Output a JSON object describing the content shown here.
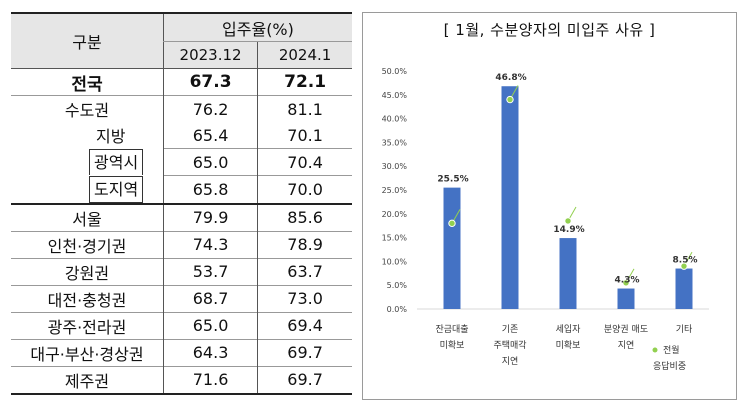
{
  "table": {
    "header": {
      "category": "구분",
      "group": "입주율(%)",
      "col1": "2023.12",
      "col2": "2024.1"
    },
    "rows": [
      {
        "label": "전국",
        "v1": "67.3",
        "v2": "72.1"
      },
      {
        "label": "수도권",
        "v1": "76.2",
        "v2": "81.1"
      },
      {
        "label": "지방",
        "v1": "65.4",
        "v2": "70.1"
      },
      {
        "label": "광역시",
        "v1": "65.0",
        "v2": "70.4"
      },
      {
        "label": "도지역",
        "v1": "65.8",
        "v2": "70.0"
      },
      {
        "label": "서울",
        "v1": "79.9",
        "v2": "85.6"
      },
      {
        "label": "인천·경기권",
        "v1": "74.3",
        "v2": "78.9"
      },
      {
        "label": "강원권",
        "v1": "53.7",
        "v2": "63.7"
      },
      {
        "label": "대전·충청권",
        "v1": "68.7",
        "v2": "73.0"
      },
      {
        "label": "광주·전라권",
        "v1": "65.0",
        "v2": "69.4"
      },
      {
        "label": "대구·부산·경상권",
        "v1": "64.3",
        "v2": "69.7"
      },
      {
        "label": "제주권",
        "v1": "71.6",
        "v2": "69.7"
      }
    ]
  },
  "chart_data": {
    "type": "bar",
    "title": "[ 1월, 수분양자의 미입주 사유 ]",
    "categories": [
      [
        "잔금대출",
        "미확보"
      ],
      [
        "기존",
        "주택매각",
        "지연"
      ],
      [
        "세입자",
        "미확보"
      ],
      [
        "분양권 매도",
        "지연"
      ],
      [
        "기타"
      ]
    ],
    "series": [
      {
        "values": [
          25.5,
          46.8,
          14.9,
          4.3,
          8.5
        ],
        "color": "#4472c4"
      },
      {
        "name": "전월 응답비중",
        "values": [
          18.0,
          44.0,
          18.5,
          5.5,
          9.0
        ],
        "color": "#92d050",
        "marker": "dot"
      }
    ],
    "value_labels": [
      "25.5%",
      "46.8%",
      "14.9%",
      "4.3%",
      "8.5%"
    ],
    "yticks": [
      "0.0%",
      "5.0%",
      "10.0%",
      "15.0%",
      "20.0%",
      "25.0%",
      "30.0%",
      "35.0%",
      "40.0%",
      "45.0%",
      "50.0%"
    ],
    "ylim": [
      0,
      50
    ],
    "legend": {
      "label_line1": "전월",
      "label_line2": "응답비중",
      "position": "bottom-right"
    },
    "grid": false
  }
}
